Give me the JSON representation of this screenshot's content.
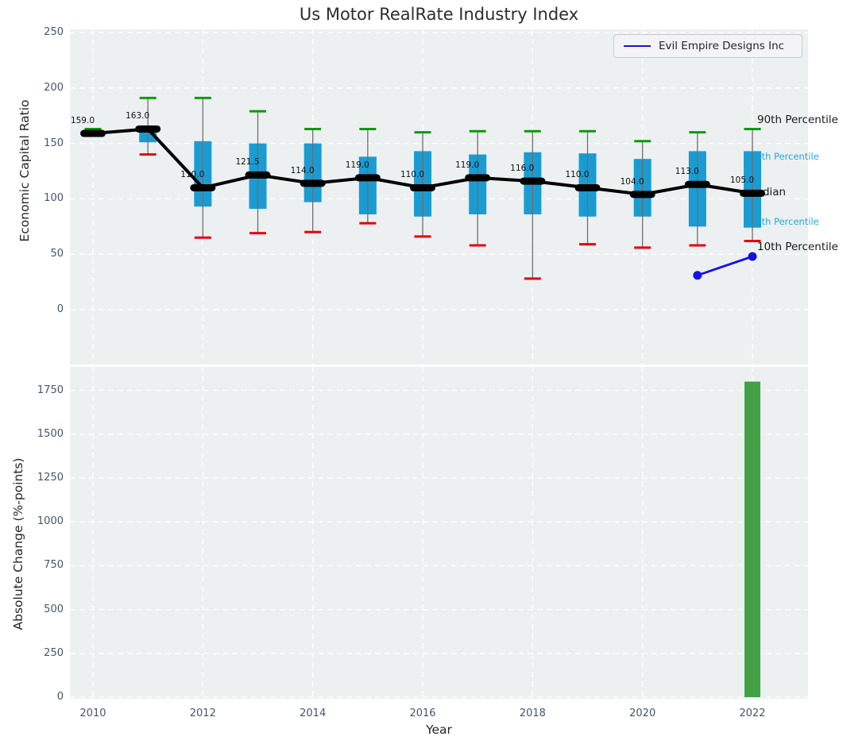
{
  "title": "Us Motor RealRate Industry Index",
  "legend": {
    "label": "Evil Empire Designs Inc"
  },
  "annotations": {
    "p90": "90th Percentile",
    "p75": "75th Percentile",
    "median": "Median",
    "p25": "25th Percentile",
    "p10": "10th Percentile"
  },
  "colors": {
    "box_fill": "#1a9cd3",
    "whisker": "#6e6e6e",
    "cap_high": "#0c9a0c",
    "cap_low": "#e8000d",
    "median_line": "#000000",
    "company_line": "#1414e0",
    "bar_fill": "#42a146",
    "plot_bg": "#ecf0f1",
    "grid": "#ffffff",
    "tick_label": "#44566b",
    "annotation_cyan": "#29a8d8"
  },
  "chart_data": [
    {
      "type": "boxplot",
      "title": "Us Motor RealRate Industry Index",
      "ylabel": "Economic Capital Ratio",
      "xlabel": "Year",
      "ylim": [
        -50,
        253
      ],
      "yticks": [
        0,
        50,
        100,
        150,
        200,
        250
      ],
      "xgrid_years": [
        2010,
        2012,
        2014,
        2016,
        2018,
        2020,
        2022
      ],
      "legend_position": "upper right",
      "grid": true,
      "boxes": [
        {
          "year": 2010,
          "label": "159.0",
          "median": 159.0,
          "q1": 156,
          "q3": 160,
          "whisker_low": 157,
          "whisker_high": 163
        },
        {
          "year": 2011,
          "label": "163.0",
          "median": 163.0,
          "q1": 151,
          "q3": 163,
          "whisker_low": 140,
          "whisker_high": 191
        },
        {
          "year": 2012,
          "label": "110.0",
          "median": 110.0,
          "q1": 93,
          "q3": 152,
          "whisker_low": 65,
          "whisker_high": 191
        },
        {
          "year": 2013,
          "label": "121.5",
          "median": 121.5,
          "q1": 91,
          "q3": 150,
          "whisker_low": 69,
          "whisker_high": 179
        },
        {
          "year": 2014,
          "label": "114.0",
          "median": 114.0,
          "q1": 97,
          "q3": 150,
          "whisker_low": 70,
          "whisker_high": 163
        },
        {
          "year": 2015,
          "label": "119.0",
          "median": 119.0,
          "q1": 86,
          "q3": 138,
          "whisker_low": 78,
          "whisker_high": 163
        },
        {
          "year": 2016,
          "label": "110.0",
          "median": 110.0,
          "q1": 84,
          "q3": 143,
          "whisker_low": 66,
          "whisker_high": 160
        },
        {
          "year": 2017,
          "label": "119.0",
          "median": 119.0,
          "q1": 86,
          "q3": 140,
          "whisker_low": 58,
          "whisker_high": 161
        },
        {
          "year": 2018,
          "label": "116.0",
          "median": 116.0,
          "q1": 86,
          "q3": 142,
          "whisker_low": 28,
          "whisker_high": 161
        },
        {
          "year": 2019,
          "label": "110.0",
          "median": 110.0,
          "q1": 84,
          "q3": 141,
          "whisker_low": 59,
          "whisker_high": 161
        },
        {
          "year": 2020,
          "label": "104.0",
          "median": 104.0,
          "q1": 84,
          "q3": 136,
          "whisker_low": 56,
          "whisker_high": 152
        },
        {
          "year": 2021,
          "label": "113.0",
          "median": 113.0,
          "q1": 75,
          "q3": 143,
          "whisker_low": 58,
          "whisker_high": 160
        },
        {
          "year": 2022,
          "label": "105.0",
          "median": 105.0,
          "q1": 74,
          "q3": 143,
          "whisker_low": 62,
          "whisker_high": 163
        }
      ],
      "company_series": {
        "name": "Evil Empire Designs Inc",
        "x": [
          2021,
          2022
        ],
        "y": [
          31,
          48
        ]
      }
    },
    {
      "type": "bar",
      "ylabel": "Absolute Change (%-points)",
      "xlabel": "Year",
      "ylim": [
        0,
        1880
      ],
      "yticks": [
        0,
        250,
        500,
        750,
        1000,
        1250,
        1500,
        1750
      ],
      "xticks": [
        2010,
        2012,
        2014,
        2016,
        2018,
        2020,
        2022
      ],
      "grid": true,
      "categories": [
        2022
      ],
      "values": [
        1800
      ]
    }
  ]
}
